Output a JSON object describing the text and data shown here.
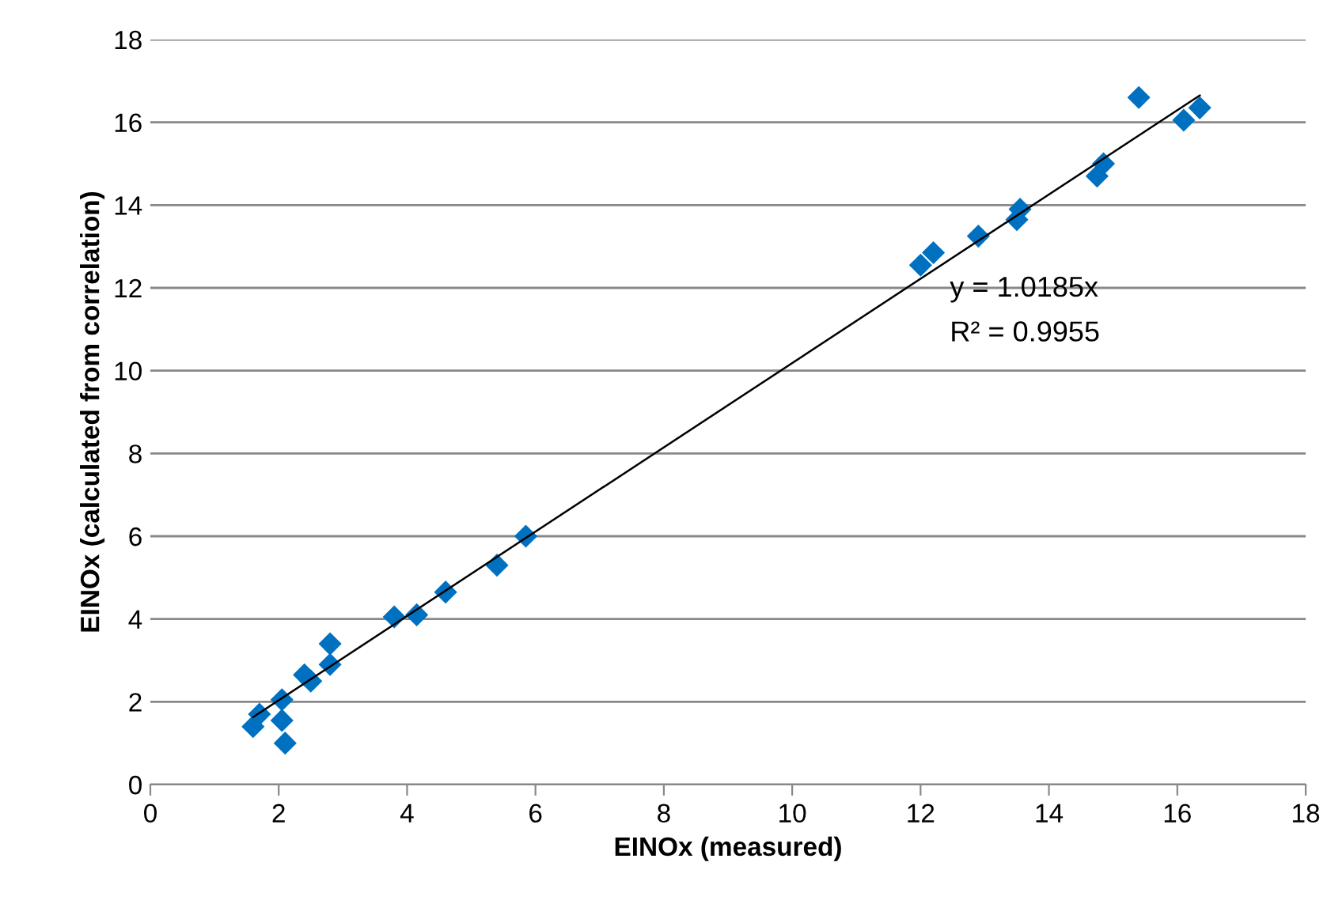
{
  "chart_data": {
    "type": "scatter",
    "xlabel": "EINOx (measured)",
    "ylabel": "EINOx (calculated from correlation)",
    "xlim": [
      0,
      18
    ],
    "ylim": [
      0,
      18
    ],
    "xticks": [
      0,
      2,
      4,
      6,
      8,
      10,
      12,
      14,
      16,
      18
    ],
    "yticks": [
      0,
      2,
      4,
      6,
      8,
      10,
      12,
      14,
      16,
      18
    ],
    "grid": "y",
    "series": [
      {
        "marker": "diamond",
        "color": "#0070c0",
        "x": [
          1.6,
          1.7,
          2.05,
          2.05,
          2.1,
          2.4,
          2.5,
          2.8,
          2.8,
          3.8,
          4.15,
          4.6,
          5.4,
          5.85,
          12.0,
          12.2,
          12.9,
          13.5,
          13.55,
          14.75,
          14.85,
          15.4,
          16.1,
          16.35
        ],
        "values": [
          1.4,
          1.7,
          2.05,
          1.55,
          1.0,
          2.65,
          2.5,
          3.4,
          2.9,
          4.05,
          4.1,
          4.65,
          5.3,
          6.0,
          12.55,
          12.85,
          13.25,
          13.65,
          13.9,
          14.7,
          15.0,
          16.6,
          16.05,
          16.35
        ]
      },
      {
        "type": "line",
        "color": "#000000",
        "x": [
          1.6,
          16.35
        ],
        "values": [
          1.63,
          16.65
        ]
      }
    ],
    "annotations": [
      "y = 1.0185x",
      "R² = 0.9955"
    ]
  }
}
